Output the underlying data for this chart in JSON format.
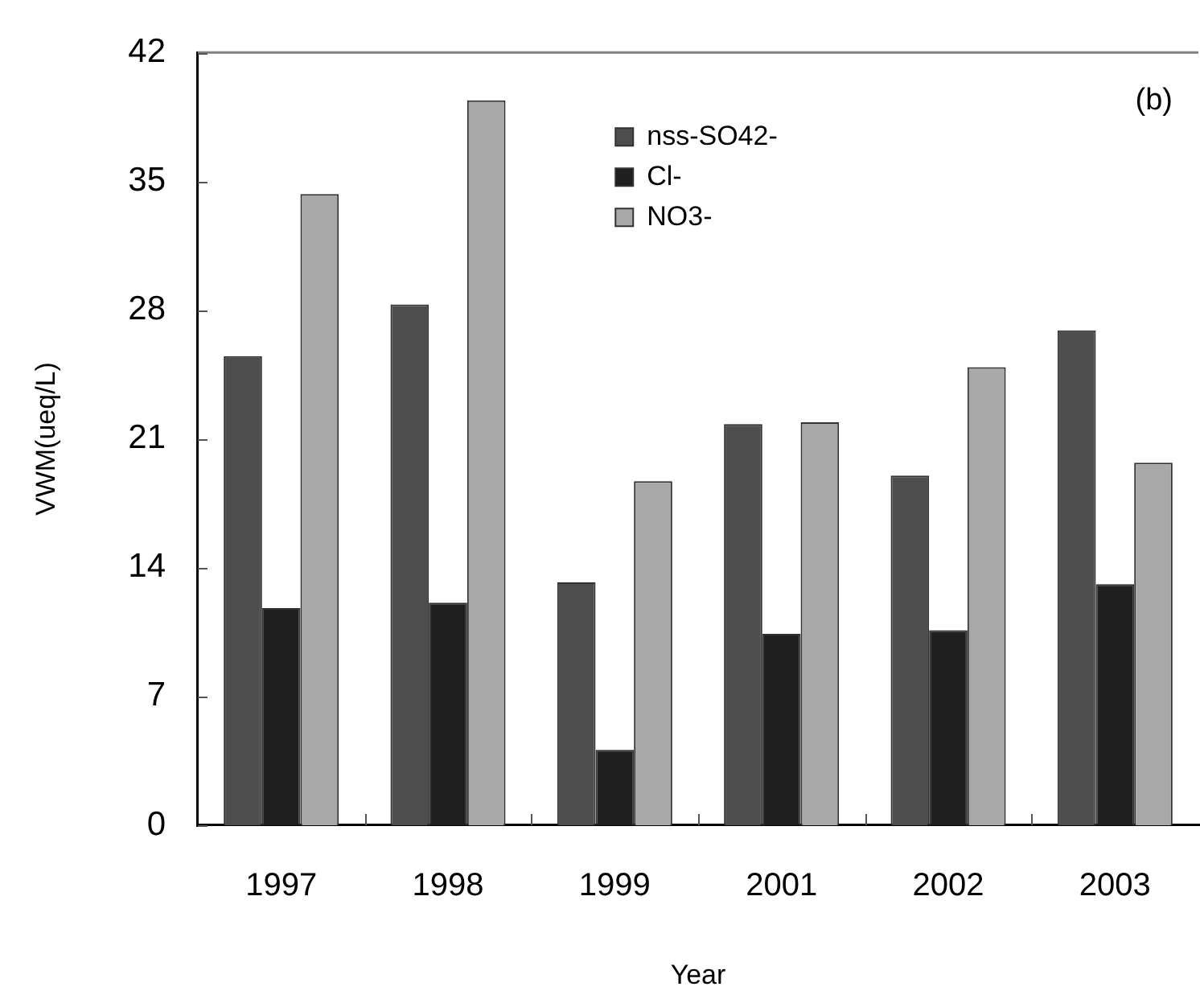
{
  "chart_data": {
    "type": "bar",
    "ylabel": "VWM(ueq/L)",
    "xlabel": "Year",
    "annotations": [
      "(b)"
    ],
    "categories": [
      "1997",
      "1998",
      "1999",
      "2001",
      "2002",
      "2003"
    ],
    "series": [
      {
        "name": "nss-SO42-",
        "color": "#4d4d4d",
        "values": [
          25.5,
          28.3,
          13.2,
          21.8,
          19.0,
          26.9
        ]
      },
      {
        "name": "Cl-",
        "color": "#1f1f1f",
        "values": [
          11.8,
          12.1,
          4.1,
          10.4,
          10.6,
          13.1
        ]
      },
      {
        "name": "NO3-",
        "color": "#a8a8a8",
        "values": [
          34.3,
          39.4,
          18.7,
          21.9,
          24.9,
          19.7
        ]
      }
    ],
    "ylim": [
      0,
      42
    ],
    "yticks": [
      0,
      7,
      14,
      21,
      28,
      35,
      42
    ],
    "legend": "top"
  }
}
